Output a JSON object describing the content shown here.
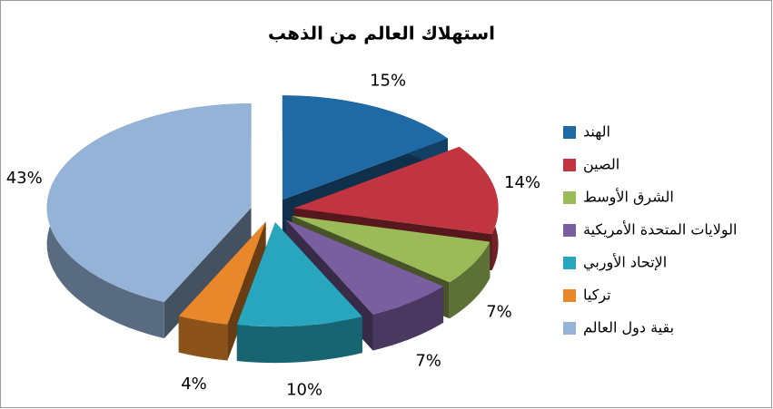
{
  "chart_data": {
    "type": "pie3d",
    "title": "استهلاك العالم من الذهب",
    "categories": [
      "الهند",
      "الصين",
      "الشرق الأوسط",
      "الولايات المتحدة الأمريكية",
      "الإتحاد الأوربي",
      "تركيا",
      "بقية دول العالم"
    ],
    "values": [
      15,
      14,
      7,
      7,
      10,
      4,
      43
    ],
    "value_labels": [
      "15%",
      "14%",
      "7%",
      "7%",
      "10%",
      "4%",
      "43%"
    ],
    "colors": [
      "#1f6aa5",
      "#c0353f",
      "#9bbb59",
      "#7a5fa0",
      "#27a6be",
      "#e8882a",
      "#95b3d7"
    ],
    "legend": "right"
  }
}
